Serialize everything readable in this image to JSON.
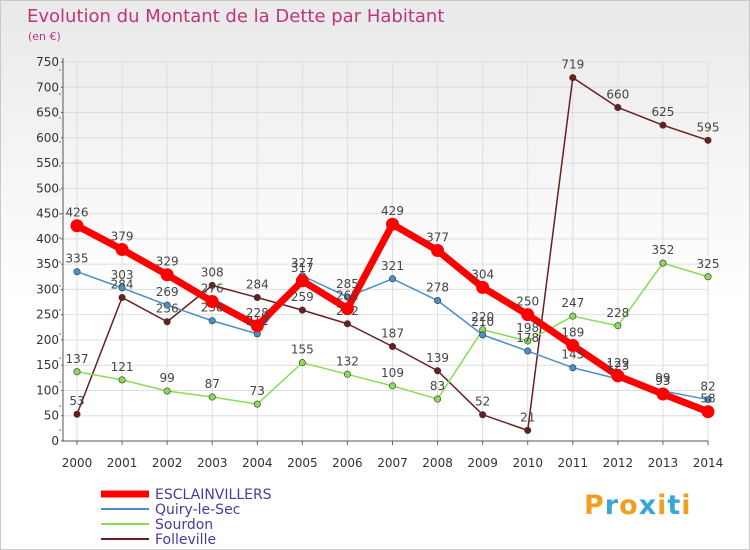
{
  "header": {
    "title": "Evolution du Montant de la Dette par Habitant",
    "unit": "(en €)"
  },
  "branding": {
    "logo_text": "Proxiti"
  },
  "chart_data": {
    "type": "line",
    "title": "Evolution du Montant de la Dette par Habitant",
    "ylabel": "(en €)",
    "xlabel": "",
    "ylim": [
      0,
      750
    ],
    "yticks": [
      0,
      50,
      100,
      150,
      200,
      250,
      300,
      350,
      400,
      450,
      500,
      550,
      600,
      650,
      700,
      750
    ],
    "x": [
      "2000",
      "2001",
      "2002",
      "2003",
      "2004",
      "2005",
      "2006",
      "2007",
      "2008",
      "2009",
      "2010",
      "2011",
      "2012",
      "2013",
      "2014"
    ],
    "grid": true,
    "legend_position": "bottom-left",
    "series": [
      {
        "name": "ESCLAINVILLERS",
        "color": "#ff0000",
        "values": [
          426,
          379,
          329,
          276,
          228,
          317,
          262,
          429,
          377,
          304,
          250,
          189,
          129,
          93,
          58
        ]
      },
      {
        "name": "Quiry-le-Sec",
        "color": "#4a90c8",
        "values": [
          335,
          303,
          269,
          238,
          212,
          327,
          285,
          321,
          278,
          210,
          178,
          145,
          123,
          99,
          82
        ]
      },
      {
        "name": "Sourdon",
        "color": "#88dd55",
        "values": [
          137,
          121,
          99,
          87,
          73,
          155,
          132,
          109,
          83,
          220,
          198,
          247,
          228,
          352,
          325
        ]
      },
      {
        "name": "Folleville",
        "color": "#6a1f1f",
        "values": [
          53,
          284,
          236,
          308,
          284,
          259,
          232,
          187,
          139,
          52,
          21,
          719,
          660,
          625,
          595
        ]
      }
    ]
  }
}
